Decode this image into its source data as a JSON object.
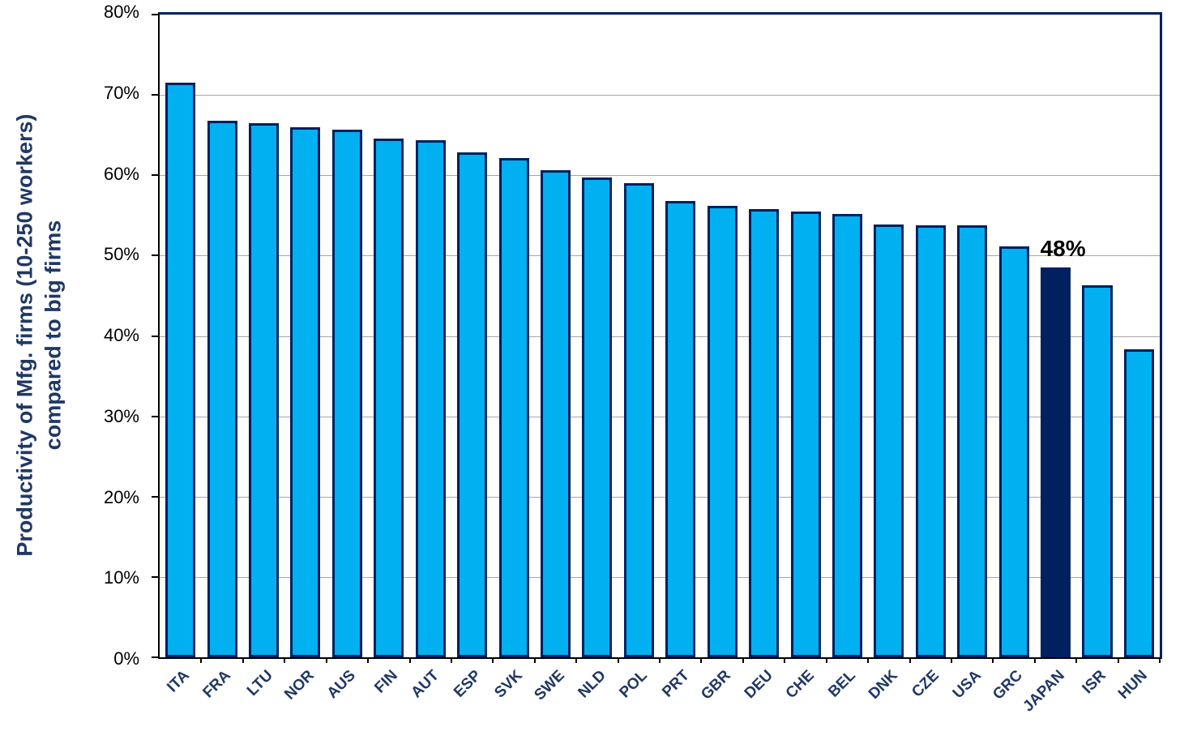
{
  "chart_data": {
    "type": "bar",
    "title": "",
    "ylabel_line1": "Productivity of Mfg. firms (10-250 workers)",
    "ylabel_line2": "compared to big firms",
    "xlabel": "",
    "categories": [
      "ITA",
      "FRA",
      "LTU",
      "NOR",
      "AUS",
      "FIN",
      "AUT",
      "ESP",
      "SVK",
      "SWE",
      "NLD",
      "POL",
      "PRT",
      "GBR",
      "DEU",
      "CHE",
      "BEL",
      "DNK",
      "CZE",
      "USA",
      "GRC",
      "JAPAN",
      "ISR",
      "HUN"
    ],
    "values": [
      71.5,
      66.8,
      66.5,
      66.0,
      65.7,
      64.6,
      64.4,
      62.9,
      62.1,
      60.6,
      59.7,
      59.0,
      56.8,
      56.2,
      55.8,
      55.5,
      55.2,
      53.9,
      53.8,
      53.8,
      51.1,
      48.5,
      46.3,
      38.3
    ],
    "highlight_category": "JAPAN",
    "highlight_label": "48%",
    "ylim": [
      0,
      80
    ],
    "ytick_step": 10,
    "y_tick_labels": [
      "0%",
      "10%",
      "20%",
      "30%",
      "40%",
      "50%",
      "60%",
      "70%",
      "80%"
    ],
    "grid": "horizontal-gray-lines",
    "legend": "none",
    "colors": {
      "bar_fill": "#00b0f0",
      "bar_border": "#002060",
      "highlight_fill": "#002060",
      "gridline": "#a6a6a6",
      "axis": "#000000",
      "axis_title_text": "#203864",
      "category_label_text": "#203864",
      "annotation_text": "#000000"
    }
  }
}
